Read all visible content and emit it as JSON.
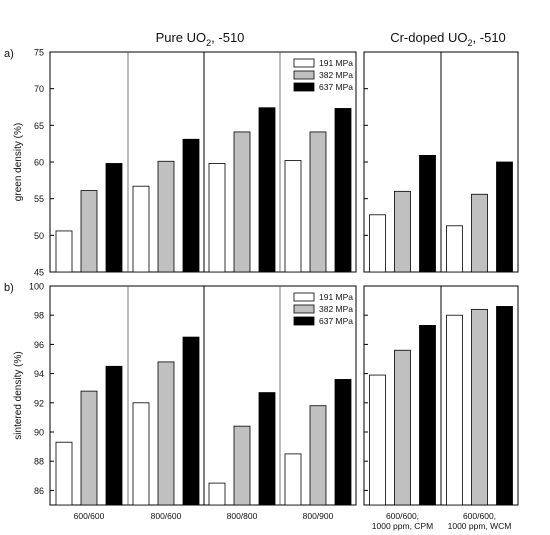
{
  "figure": {
    "title_pure": "Pure UO",
    "title_pure_sub": "2",
    "title_pure_suffix": ", -510",
    "title_cr": "Cr-doped UO",
    "title_cr_sub": "2",
    "title_cr_suffix": ", -510",
    "group_labels": [
      [
        "600/600"
      ],
      [
        "800/600"
      ],
      [
        "800/800"
      ],
      [
        "800/900"
      ],
      [
        "600/600,",
        "1000 ppm, CPM"
      ],
      [
        "600/600,",
        "1000 ppm, WCM"
      ]
    ]
  },
  "chart_data": [
    {
      "type": "bar",
      "panel_label": "a)",
      "ylabel": "green density (%)",
      "ylim": [
        45,
        75
      ],
      "yticks": [
        45,
        50,
        55,
        60,
        65,
        70,
        75
      ],
      "categories": [
        "600/600",
        "800/600",
        "800/800",
        "800/900",
        "600/600, 1000 ppm, CPM",
        "600/600, 1000 ppm, WCM"
      ],
      "series": [
        {
          "name": "191 MPa",
          "color": "#ffffff",
          "values": [
            50.6,
            56.7,
            59.8,
            60.2,
            52.8,
            51.3
          ]
        },
        {
          "name": "382 MPa",
          "color": "#c0c0c0",
          "values": [
            56.1,
            60.1,
            64.1,
            64.1,
            56.0,
            55.6
          ]
        },
        {
          "name": "637 MPa",
          "color": "#000000",
          "values": [
            59.8,
            63.1,
            67.4,
            67.3,
            60.9,
            60.0
          ]
        }
      ],
      "legend": "top-right"
    },
    {
      "type": "bar",
      "panel_label": "b)",
      "ylabel": "sintered density (%)",
      "ylim": [
        85,
        100
      ],
      "yticks": [
        86,
        88,
        90,
        92,
        94,
        96,
        98,
        100
      ],
      "categories": [
        "600/600",
        "800/600",
        "800/800",
        "800/900",
        "600/600, 1000 ppm, CPM",
        "600/600, 1000 ppm, WCM"
      ],
      "series": [
        {
          "name": "191 MPa",
          "color": "#ffffff",
          "values": [
            89.3,
            92.0,
            86.5,
            88.5,
            93.9,
            98.0
          ]
        },
        {
          "name": "382 MPa",
          "color": "#c0c0c0",
          "values": [
            92.8,
            94.8,
            90.4,
            91.8,
            95.6,
            98.4
          ]
        },
        {
          "name": "637 MPa",
          "color": "#000000",
          "values": [
            94.5,
            96.5,
            92.7,
            93.6,
            97.3,
            98.6
          ]
        }
      ],
      "legend": "top-right"
    }
  ]
}
